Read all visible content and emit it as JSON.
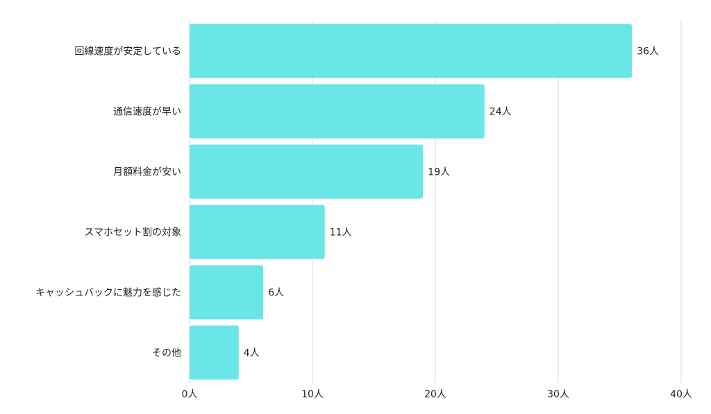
{
  "chart_data": {
    "type": "bar",
    "orientation": "horizontal",
    "categories": [
      "回線速度が安定している",
      "通信速度が早い",
      "月額料金が安い",
      "スマホセット割の対象",
      "キャッシュバックに魅力を感じた",
      "その他"
    ],
    "values": [
      36,
      24,
      19,
      11,
      6,
      4
    ],
    "value_labels": [
      "36人",
      "24人",
      "19人",
      "11人",
      "6人",
      "4人"
    ],
    "xlim": [
      0,
      40
    ],
    "x_ticks": [
      0,
      10,
      20,
      30,
      40
    ],
    "x_tick_labels": [
      "0人",
      "10人",
      "20人",
      "30人",
      "40人"
    ],
    "grid": true,
    "bar_color": "#6ae6e8"
  }
}
